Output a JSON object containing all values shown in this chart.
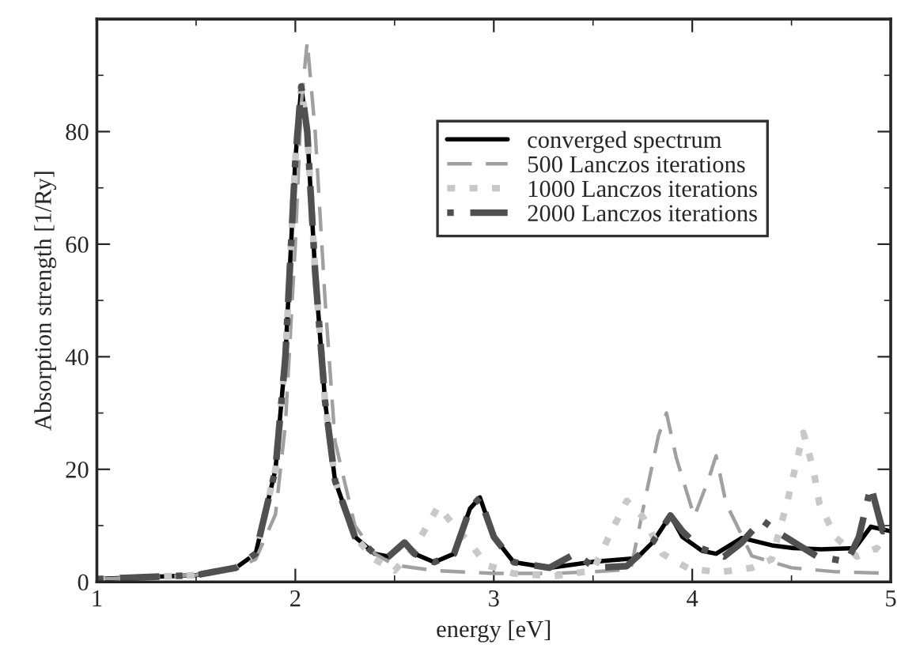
{
  "chart_data": {
    "type": "line",
    "xlabel": "energy [eV]",
    "ylabel": "Absorption strength [1/Ry]",
    "xlim": [
      1,
      5
    ],
    "ylim": [
      0,
      100
    ],
    "xticks": [
      1,
      2,
      3,
      4,
      5
    ],
    "yticks": [
      0,
      20,
      40,
      60,
      80
    ],
    "grid": false,
    "legend": "top right",
    "marker": "none",
    "series": [
      {
        "name": "converged spectrum",
        "color": "#000000",
        "line_style": "solid",
        "x": [
          1.0,
          1.5,
          1.7,
          1.8,
          1.9,
          1.95,
          2.0,
          2.03,
          2.06,
          2.1,
          2.15,
          2.2,
          2.3,
          2.4,
          2.47,
          2.55,
          2.6,
          2.7,
          2.8,
          2.88,
          2.93,
          3.0,
          3.1,
          3.28,
          3.51,
          3.72,
          3.8,
          3.89,
          3.95,
          4.05,
          4.12,
          4.25,
          4.4,
          4.51,
          4.65,
          4.82,
          4.9,
          5.0
        ],
        "values": [
          0.5,
          1.2,
          2.5,
          5,
          20,
          40,
          75,
          88,
          80,
          55,
          32,
          18,
          8,
          5,
          4.5,
          7,
          5,
          3.5,
          5,
          13,
          15,
          8,
          3.5,
          2.5,
          3.6,
          4.2,
          7,
          11.8,
          8,
          5.5,
          5,
          7.8,
          6.5,
          6,
          5.8,
          6,
          9.8,
          9
        ]
      },
      {
        "name": "500 Lanczos iterations",
        "color": "#a0a0a0",
        "line_style": "dashed",
        "x": [
          1.0,
          1.5,
          1.7,
          1.8,
          1.9,
          1.95,
          2.0,
          2.03,
          2.06,
          2.1,
          2.15,
          2.2,
          2.3,
          2.4,
          2.5,
          2.7,
          3.0,
          3.3,
          3.5,
          3.69,
          3.77,
          3.83,
          3.87,
          3.92,
          4.01,
          4.08,
          4.12,
          4.17,
          4.3,
          4.5,
          4.72,
          5.0
        ],
        "values": [
          0.5,
          1.2,
          2.5,
          4,
          12,
          28,
          60,
          85,
          96,
          80,
          50,
          25,
          10,
          5,
          3,
          2,
          1.5,
          1.5,
          1.8,
          2.2,
          16,
          26,
          30,
          22,
          11.6,
          18,
          22.4,
          14,
          4.6,
          2.5,
          1.8,
          1.5
        ]
      },
      {
        "name": "1000 Lanczos iterations",
        "color": "#c8c8c8",
        "line_style": "dotted",
        "x": [
          1.0,
          1.5,
          1.7,
          1.8,
          1.9,
          1.95,
          2.0,
          2.03,
          2.06,
          2.1,
          2.15,
          2.2,
          2.3,
          2.4,
          2.5,
          2.6,
          2.72,
          2.8,
          2.9,
          2.96,
          3.1,
          3.3,
          3.5,
          3.59,
          3.67,
          3.75,
          3.85,
          3.98,
          4.13,
          4.3,
          4.4,
          4.48,
          4.56,
          4.61,
          4.64,
          4.72,
          4.83,
          4.93,
          5.0
        ],
        "values": [
          0.5,
          1.2,
          2.5,
          5,
          20,
          40,
          75,
          88,
          80,
          55,
          32,
          18,
          8,
          4,
          2,
          6,
          13.4,
          10,
          6,
          3,
          1.5,
          1,
          2,
          8.8,
          14.4,
          11.6,
          5,
          2.4,
          1.7,
          2.5,
          4,
          14.4,
          26.5,
          20,
          14,
          8,
          4.5,
          6,
          4
        ]
      },
      {
        "name": "2000 Lanczos iterations",
        "color": "#505050",
        "line_style": "dashdot",
        "x": [
          1.0,
          1.5,
          1.7,
          1.8,
          1.9,
          1.95,
          2.0,
          2.03,
          2.06,
          2.1,
          2.15,
          2.2,
          2.3,
          2.4,
          2.47,
          2.55,
          2.6,
          2.7,
          2.8,
          2.88,
          2.93,
          3.0,
          3.1,
          3.28,
          3.41,
          3.51,
          3.67,
          3.8,
          3.89,
          3.95,
          4.04,
          4.16,
          4.25,
          4.35,
          4.45,
          4.63,
          4.78,
          4.84,
          4.9,
          4.96,
          5.0
        ],
        "values": [
          0.5,
          1.2,
          2.5,
          5,
          20,
          40,
          75,
          88,
          80,
          55,
          32,
          18,
          8,
          5,
          4.5,
          7,
          5,
          3.5,
          5,
          13,
          15,
          8,
          3.5,
          2.5,
          5,
          2.5,
          2.8,
          7,
          11.8,
          9,
          6,
          4.5,
          7,
          11,
          8.4,
          4.5,
          3.6,
          8,
          17,
          9,
          10
        ]
      }
    ]
  }
}
